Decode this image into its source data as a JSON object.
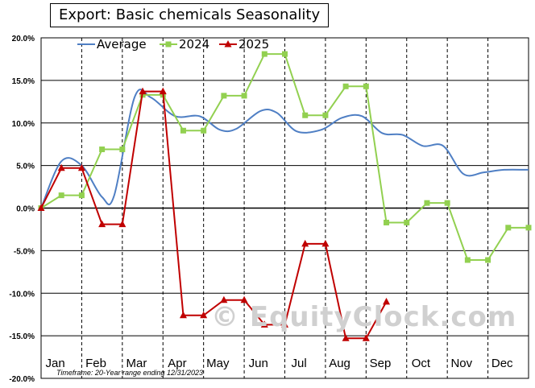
{
  "header": {
    "title": "Export: Basic chemicals Seasonality"
  },
  "footnote": "Timeframe: 20-Year range ending 12/31/2023",
  "watermark": "© EquityClock.com",
  "colors": {
    "average": "#4f7fc4",
    "y2024": "#92d050",
    "y2025": "#c00000",
    "grid": "#000000",
    "zero_line": "#000000"
  },
  "chart_data": {
    "type": "line",
    "title": "Export: Basic chemicals Seasonality",
    "xlabel": "",
    "ylabel": "",
    "ylim": [
      -20,
      20
    ],
    "y_ticks": [
      "20.0%",
      "15.0%",
      "10.0%",
      "5.0%",
      "0.0%",
      "-5.0%",
      "-10.0%",
      "-15.0%",
      "-20.0%"
    ],
    "y_tick_values": [
      20,
      15,
      10,
      5,
      0,
      -5,
      -10,
      -15,
      -20
    ],
    "month_labels": [
      "Jan",
      "Feb",
      "Mar",
      "Apr",
      "May",
      "Jun",
      "Jul",
      "Aug",
      "Sep",
      "Oct",
      "Nov",
      "Dec"
    ],
    "x_range": [
      0,
      12
    ],
    "legend_position": "top-left",
    "grid": "vertical dashed at month boundaries, horizontal solid at y ticks",
    "series": [
      {
        "name": "Average",
        "style": "smooth-line",
        "points": [
          [
            0.0,
            0.0
          ],
          [
            0.5,
            5.5
          ],
          [
            1.0,
            5.0
          ],
          [
            1.5,
            1.3
          ],
          [
            1.8,
            1.5
          ],
          [
            2.3,
            13.0
          ],
          [
            2.7,
            13.0
          ],
          [
            3.3,
            10.8
          ],
          [
            3.9,
            10.8
          ],
          [
            4.4,
            9.2
          ],
          [
            4.8,
            9.3
          ],
          [
            5.4,
            11.4
          ],
          [
            5.8,
            11.2
          ],
          [
            6.3,
            9.0
          ],
          [
            6.9,
            9.2
          ],
          [
            7.4,
            10.6
          ],
          [
            7.9,
            10.8
          ],
          [
            8.4,
            8.8
          ],
          [
            8.9,
            8.6
          ],
          [
            9.4,
            7.3
          ],
          [
            9.9,
            7.3
          ],
          [
            10.4,
            4.0
          ],
          [
            10.9,
            4.2
          ],
          [
            11.4,
            4.5
          ],
          [
            12.0,
            4.5
          ]
        ]
      },
      {
        "name": "2024",
        "style": "step-line",
        "marker": "square",
        "points": [
          [
            0.0,
            0.0
          ],
          [
            0.5,
            1.5
          ],
          [
            1.0,
            1.5
          ],
          [
            1.5,
            6.9
          ],
          [
            2.0,
            6.9
          ],
          [
            2.5,
            13.3
          ],
          [
            3.0,
            13.3
          ],
          [
            3.5,
            9.1
          ],
          [
            4.0,
            9.1
          ],
          [
            4.5,
            13.2
          ],
          [
            5.0,
            13.2
          ],
          [
            5.5,
            18.1
          ],
          [
            6.0,
            18.1
          ],
          [
            6.5,
            10.9
          ],
          [
            7.0,
            10.9
          ],
          [
            7.5,
            14.3
          ],
          [
            8.0,
            14.3
          ],
          [
            8.5,
            -1.7
          ],
          [
            9.0,
            -1.7
          ],
          [
            9.5,
            0.6
          ],
          [
            10.0,
            0.6
          ],
          [
            10.5,
            -6.1
          ],
          [
            11.0,
            -6.1
          ],
          [
            11.5,
            -2.3
          ],
          [
            12.0,
            -2.3
          ]
        ]
      },
      {
        "name": "2025",
        "style": "step-line",
        "marker": "triangle",
        "points": [
          [
            0.0,
            0.0
          ],
          [
            0.5,
            4.7
          ],
          [
            1.0,
            4.7
          ],
          [
            1.5,
            -1.9
          ],
          [
            2.0,
            -1.9
          ],
          [
            2.5,
            13.7
          ],
          [
            3.0,
            13.7
          ],
          [
            3.5,
            -12.6
          ],
          [
            4.0,
            -12.6
          ],
          [
            4.5,
            -10.8
          ],
          [
            5.0,
            -10.8
          ],
          [
            5.5,
            -13.7
          ],
          [
            6.0,
            -13.7
          ],
          [
            6.5,
            -4.2
          ],
          [
            7.0,
            -4.2
          ],
          [
            7.5,
            -15.3
          ],
          [
            8.0,
            -15.3
          ],
          [
            8.5,
            -11.0
          ]
        ]
      }
    ]
  }
}
